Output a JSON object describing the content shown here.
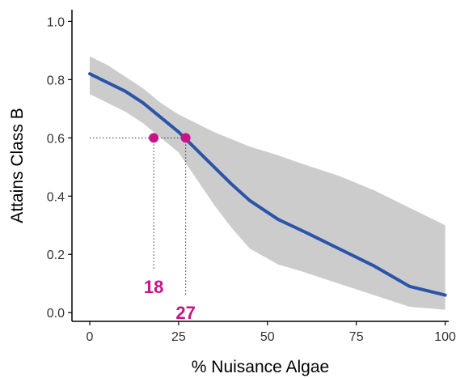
{
  "chart_data": {
    "type": "line",
    "title": "",
    "xlabel": "% Nuisance Algae",
    "ylabel": "Attains Class B",
    "xlim": [
      -5,
      101
    ],
    "ylim": [
      -0.03,
      1.04
    ],
    "x_ticks": [
      0,
      25,
      50,
      75,
      100
    ],
    "x_tick_labels": [
      "0",
      "25",
      "50",
      "75",
      "100"
    ],
    "y_ticks": [
      0.0,
      0.2,
      0.4,
      0.6,
      0.8,
      1.0
    ],
    "y_tick_labels": [
      "0.0",
      "0.2",
      "0.4",
      "0.6",
      "0.8",
      "1.0"
    ],
    "grid": false,
    "legend": "none",
    "series": [
      {
        "x": [
          0,
          5,
          10,
          15,
          20,
          25,
          30,
          35,
          40,
          45,
          53,
          60,
          70,
          80,
          90,
          100
        ],
        "values": [
          0.82,
          0.79,
          0.76,
          0.72,
          0.67,
          0.62,
          0.56,
          0.5,
          0.44,
          0.385,
          0.32,
          0.28,
          0.22,
          0.16,
          0.09,
          0.06
        ],
        "color": "#2b54a8"
      }
    ],
    "confidence_band": {
      "x": [
        0,
        5,
        10,
        15,
        20,
        25,
        30,
        35,
        40,
        45,
        53,
        60,
        70,
        80,
        90,
        100
      ],
      "upper": [
        0.88,
        0.85,
        0.81,
        0.77,
        0.72,
        0.68,
        0.65,
        0.62,
        0.595,
        0.57,
        0.54,
        0.51,
        0.47,
        0.42,
        0.36,
        0.3
      ],
      "lower": [
        0.75,
        0.72,
        0.69,
        0.65,
        0.6,
        0.55,
        0.46,
        0.37,
        0.29,
        0.22,
        0.165,
        0.14,
        0.1,
        0.06,
        0.02,
        0.01
      ],
      "color": "#cccccc"
    },
    "reference_y": 0.6,
    "annotations": [
      {
        "x": 18,
        "y": 0.6,
        "label": "18",
        "label_y": 0.09
      },
      {
        "x": 27,
        "y": 0.6,
        "label": "27",
        "label_y": 0.0
      }
    ],
    "annotation_color": "#c71585"
  }
}
